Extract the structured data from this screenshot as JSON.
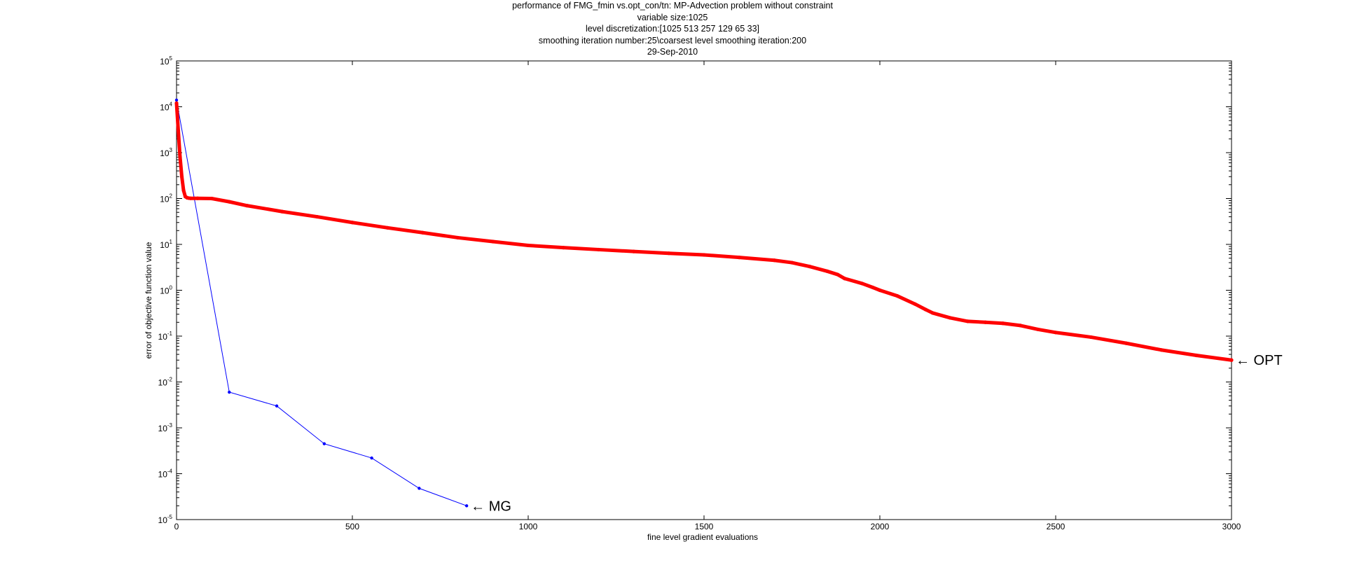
{
  "chart_data": {
    "type": "line",
    "title_lines": [
      "performance of FMG_fmin vs.opt_con/tn: MP-Advection problem without constraint",
      "variable size:1025",
      "level discretization:[1025 513 257 129 65 33]",
      "smoothing iteration number:25\\coarsest level smoothing iteration:200",
      "29-Sep-2010"
    ],
    "xlabel": "fine level gradient evaluations",
    "ylabel": "error of objective function value",
    "xlim": [
      0,
      3000
    ],
    "ylim": [
      1e-05,
      100000.0
    ],
    "yscale": "log",
    "grid": false,
    "x_ticks": [
      0,
      500,
      1000,
      1500,
      2000,
      2500,
      3000
    ],
    "x_tick_labels": [
      "0",
      "500",
      "1000",
      "1500",
      "2000",
      "2500",
      "3000"
    ],
    "y_tick_exponents": [
      -5,
      -4,
      -3,
      -2,
      -1,
      0,
      1,
      2,
      3,
      4,
      5
    ],
    "y_tick_base": "10",
    "series": [
      {
        "name": "MG",
        "color": "#0000ff",
        "marker": "dot",
        "x": [
          0,
          150,
          285,
          420,
          555,
          690,
          825
        ],
        "y": [
          14000,
          0.006,
          0.003,
          0.00045,
          0.00022,
          4.8e-05,
          2e-05
        ]
      },
      {
        "name": "OPT",
        "color": "#ff0000",
        "marker": "dense-dots",
        "x": [
          0,
          5,
          10,
          15,
          20,
          25,
          30,
          35,
          40,
          60,
          100,
          150,
          200,
          300,
          400,
          500,
          600,
          700,
          800,
          900,
          1000,
          1100,
          1200,
          1300,
          1400,
          1500,
          1600,
          1700,
          1750,
          1800,
          1850,
          1880,
          1900,
          1950,
          1980,
          2000,
          2050,
          2100,
          2130,
          2150,
          2200,
          2250,
          2300,
          2350,
          2400,
          2450,
          2500,
          2600,
          2700,
          2800,
          2900,
          3000
        ],
        "y": [
          12000,
          3000,
          800,
          300,
          150,
          110,
          104,
          102,
          101,
          101,
          100,
          85,
          70,
          52,
          40,
          30,
          23,
          18,
          14,
          11.5,
          9.5,
          8.5,
          7.7,
          7.0,
          6.4,
          5.9,
          5.2,
          4.5,
          4.0,
          3.3,
          2.6,
          2.2,
          1.8,
          1.4,
          1.15,
          1.0,
          0.75,
          0.5,
          0.38,
          0.32,
          0.25,
          0.21,
          0.2,
          0.19,
          0.17,
          0.14,
          0.12,
          0.095,
          0.07,
          0.05,
          0.038,
          0.03
        ]
      }
    ],
    "annotations": [
      {
        "text": "← MG",
        "x": 825,
        "y": 2e-05
      },
      {
        "text": "← OPT",
        "x": 3000,
        "y": 0.03
      }
    ]
  }
}
